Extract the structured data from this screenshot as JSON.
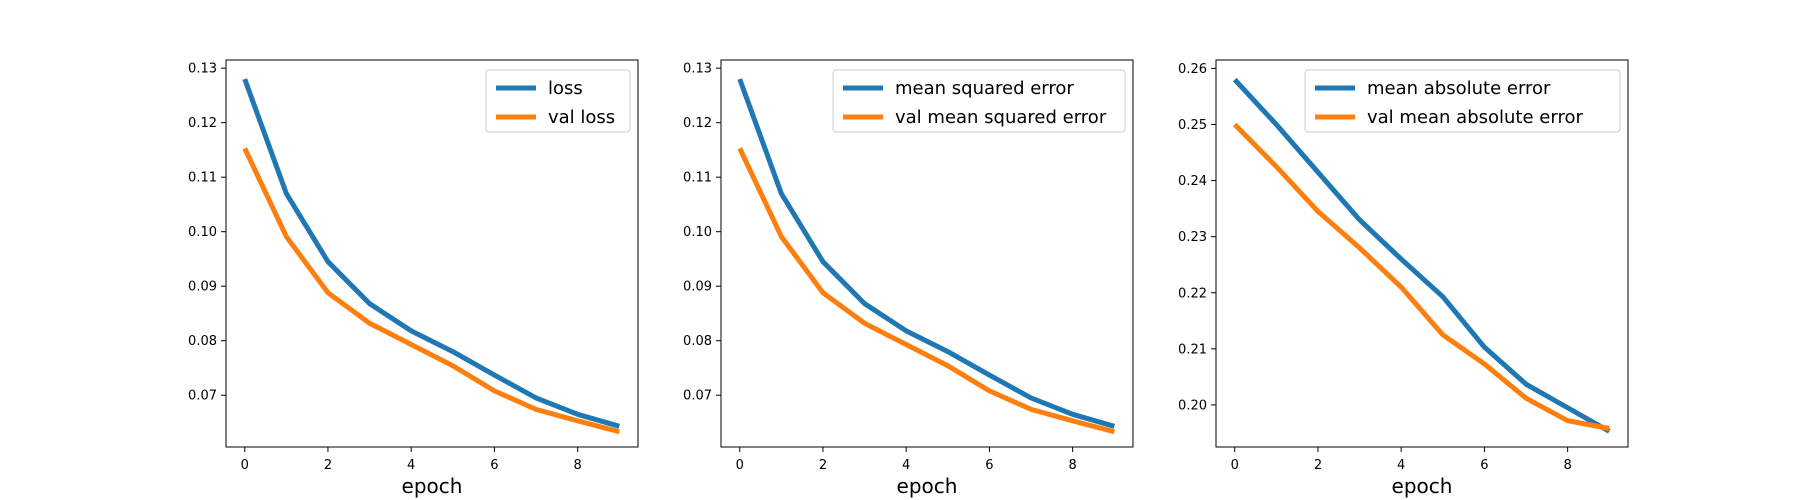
{
  "chart_data": [
    {
      "type": "line",
      "xlabel": "epoch",
      "ylabel": "",
      "xlim": [
        -0.45,
        9.45
      ],
      "ylim": [
        0.0605,
        0.1315
      ],
      "xticks": [
        0,
        2,
        4,
        6,
        8
      ],
      "xtick_labels": [
        "0",
        "2",
        "4",
        "6",
        "8"
      ],
      "yticks": [
        0.07,
        0.08,
        0.09,
        0.1,
        0.11,
        0.12,
        0.13
      ],
      "ytick_labels": [
        "0.07",
        "0.08",
        "0.09",
        "0.10",
        "0.11",
        "0.12",
        "0.13"
      ],
      "grid": false,
      "legend_position": "top-right",
      "x": [
        0,
        1,
        2,
        3,
        4,
        5,
        6,
        7,
        8,
        9
      ],
      "series": [
        {
          "name": "loss",
          "color": "#1f77b4",
          "values": [
            0.128,
            0.107,
            0.0945,
            0.0868,
            0.0818,
            0.078,
            0.0737,
            0.0695,
            0.0665,
            0.0643
          ]
        },
        {
          "name": "val loss",
          "color": "#ff7f0e",
          "values": [
            0.1153,
            0.0991,
            0.0888,
            0.0832,
            0.0793,
            0.0754,
            0.0708,
            0.0674,
            0.0653,
            0.0633
          ]
        }
      ]
    },
    {
      "type": "line",
      "xlabel": "epoch",
      "ylabel": "",
      "xlim": [
        -0.45,
        9.45
      ],
      "ylim": [
        0.0605,
        0.1315
      ],
      "xticks": [
        0,
        2,
        4,
        6,
        8
      ],
      "xtick_labels": [
        "0",
        "2",
        "4",
        "6",
        "8"
      ],
      "yticks": [
        0.07,
        0.08,
        0.09,
        0.1,
        0.11,
        0.12,
        0.13
      ],
      "ytick_labels": [
        "0.07",
        "0.08",
        "0.09",
        "0.10",
        "0.11",
        "0.12",
        "0.13"
      ],
      "grid": false,
      "legend_position": "top-right",
      "x": [
        0,
        1,
        2,
        3,
        4,
        5,
        6,
        7,
        8,
        9
      ],
      "series": [
        {
          "name": "mean squared error",
          "color": "#1f77b4",
          "values": [
            0.128,
            0.107,
            0.0945,
            0.0868,
            0.0818,
            0.078,
            0.0737,
            0.0695,
            0.0665,
            0.0643
          ]
        },
        {
          "name": "val mean squared error",
          "color": "#ff7f0e",
          "values": [
            0.1153,
            0.0991,
            0.0888,
            0.0832,
            0.0793,
            0.0754,
            0.0708,
            0.0674,
            0.0653,
            0.0633
          ]
        }
      ]
    },
    {
      "type": "line",
      "xlabel": "epoch",
      "ylabel": "",
      "xlim": [
        -0.45,
        9.45
      ],
      "ylim": [
        0.1925,
        0.2615
      ],
      "xticks": [
        0,
        2,
        4,
        6,
        8
      ],
      "xtick_labels": [
        "0",
        "2",
        "4",
        "6",
        "8"
      ],
      "yticks": [
        0.2,
        0.21,
        0.22,
        0.23,
        0.24,
        0.25,
        0.26
      ],
      "ytick_labels": [
        "0.20",
        "0.21",
        "0.22",
        "0.23",
        "0.24",
        "0.25",
        "0.26"
      ],
      "grid": false,
      "legend_position": "top-right",
      "x": [
        0,
        1,
        2,
        3,
        4,
        5,
        6,
        7,
        8,
        9
      ],
      "series": [
        {
          "name": "mean absolute error",
          "color": "#1f77b4",
          "values": [
            0.258,
            0.25,
            0.2415,
            0.233,
            0.226,
            0.2193,
            0.2103,
            0.2037,
            0.1995,
            0.1953
          ]
        },
        {
          "name": "val mean absolute error",
          "color": "#ff7f0e",
          "values": [
            0.25,
            0.2425,
            0.2345,
            0.228,
            0.221,
            0.2125,
            0.2073,
            0.2012,
            0.1972,
            0.1958
          ]
        }
      ]
    }
  ]
}
